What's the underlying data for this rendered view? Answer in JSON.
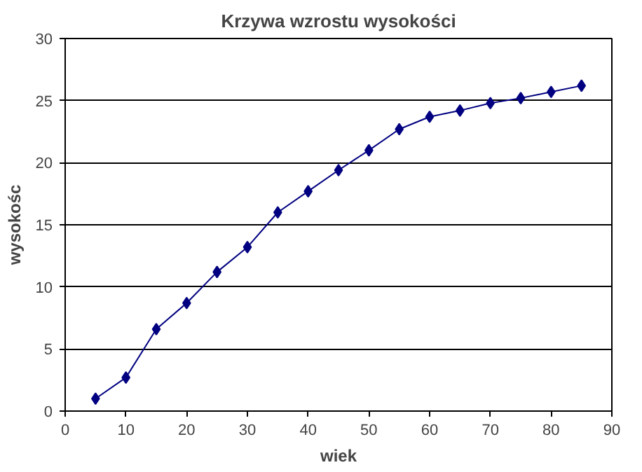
{
  "chart_data": {
    "type": "line",
    "title": "Krzywa wzrostu wysokości",
    "xlabel": "wiek",
    "ylabel": "wysokośc",
    "x": [
      5,
      10,
      15,
      20,
      25,
      30,
      35,
      40,
      45,
      50,
      55,
      60,
      65,
      70,
      75,
      80,
      85
    ],
    "series": [
      {
        "color": "#000080",
        "values": [
          1.0,
          2.7,
          6.6,
          8.7,
          11.2,
          13.2,
          16.0,
          17.7,
          19.4,
          21.0,
          22.7,
          23.7,
          24.2,
          24.8,
          25.2,
          25.7,
          26.2
        ]
      }
    ],
    "xlim": [
      0,
      90
    ],
    "xticks": [
      0,
      10,
      20,
      30,
      40,
      50,
      60,
      70,
      80,
      90
    ],
    "ylim": [
      0,
      30
    ],
    "yticks": [
      0,
      5,
      10,
      15,
      20,
      25,
      30
    ],
    "grid": "y",
    "marker": "diamond",
    "line_style": "solid"
  }
}
